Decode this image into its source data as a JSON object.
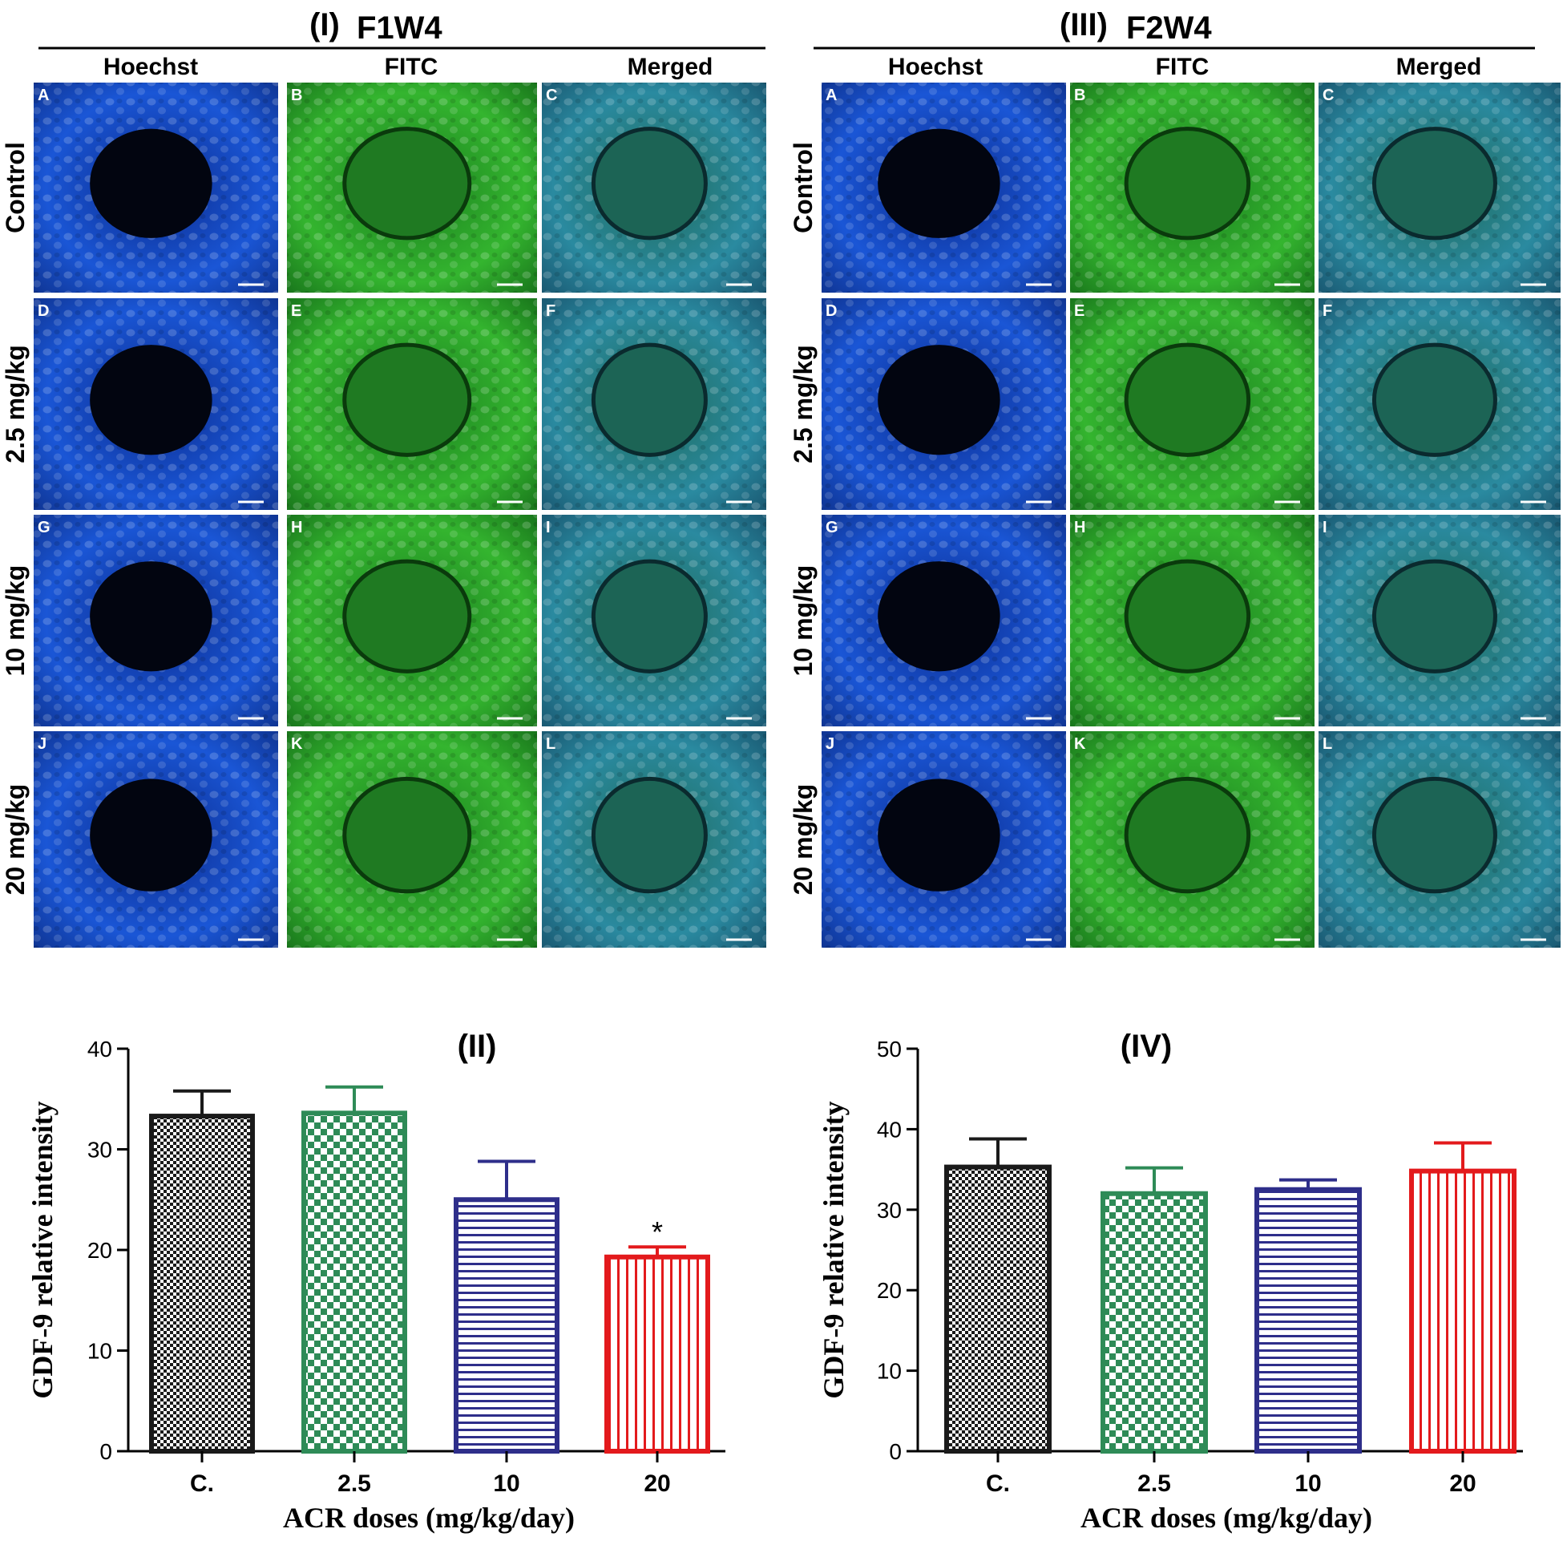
{
  "panels": [
    {
      "heading": "(I)",
      "title": "F1W4",
      "columns": [
        "Hoechst",
        "FITC",
        "Merged"
      ],
      "rows": [
        "Control",
        "2.5 mg/kg",
        "10 mg/kg",
        "20 mg/kg"
      ],
      "tile_letters": [
        "A",
        "B",
        "C",
        "D",
        "E",
        "F",
        "G",
        "H",
        "I",
        "J",
        "K",
        "L"
      ]
    },
    {
      "heading": "(III)",
      "title": "F2W4",
      "columns": [
        "Hoechst",
        "FITC",
        "Merged"
      ],
      "rows": [
        "Control",
        "2.5 mg/kg",
        "10 mg/kg",
        "20 mg/kg"
      ],
      "tile_letters": [
        "A",
        "B",
        "C",
        "D",
        "E",
        "F",
        "G",
        "H",
        "I",
        "J",
        "K",
        "L"
      ]
    }
  ],
  "colors": {
    "hoechst": "#1a56d6",
    "fitc": "#28b02c",
    "merged": "#2a8aa0",
    "control_bar": "#1a1a1a",
    "dose_2_5_bar": "#2e8b57",
    "dose_10_bar": "#2e2e8a",
    "dose_20_bar": "#e31a1c"
  },
  "chart_data": [
    {
      "type": "bar",
      "panel_label": "(II)",
      "categories": [
        "C.",
        "2.5",
        "10",
        "20"
      ],
      "values": [
        33.3,
        33.6,
        25.0,
        19.3
      ],
      "errors": [
        2.5,
        2.6,
        3.8,
        1.0
      ],
      "significance": [
        "",
        "",
        "",
        "*"
      ],
      "xlabel": "ACR doses (mg/kg/day)",
      "ylabel": "GDF-9 relative intensity",
      "ylim": [
        0,
        40
      ],
      "yticks": [
        0,
        10,
        20,
        30,
        40
      ],
      "grid": false
    },
    {
      "type": "bar",
      "panel_label": "(IV)",
      "categories": [
        "C.",
        "2.5",
        "10",
        "20"
      ],
      "values": [
        35.3,
        32.0,
        32.5,
        34.8
      ],
      "errors": [
        3.5,
        3.2,
        1.2,
        3.5
      ],
      "significance": [
        "",
        "",
        "",
        ""
      ],
      "xlabel": "ACR doses (mg/kg/day)",
      "ylabel": "GDF-9 relative intensity",
      "ylim": [
        0,
        50
      ],
      "yticks": [
        0,
        10,
        20,
        30,
        40,
        50
      ],
      "grid": false
    }
  ]
}
